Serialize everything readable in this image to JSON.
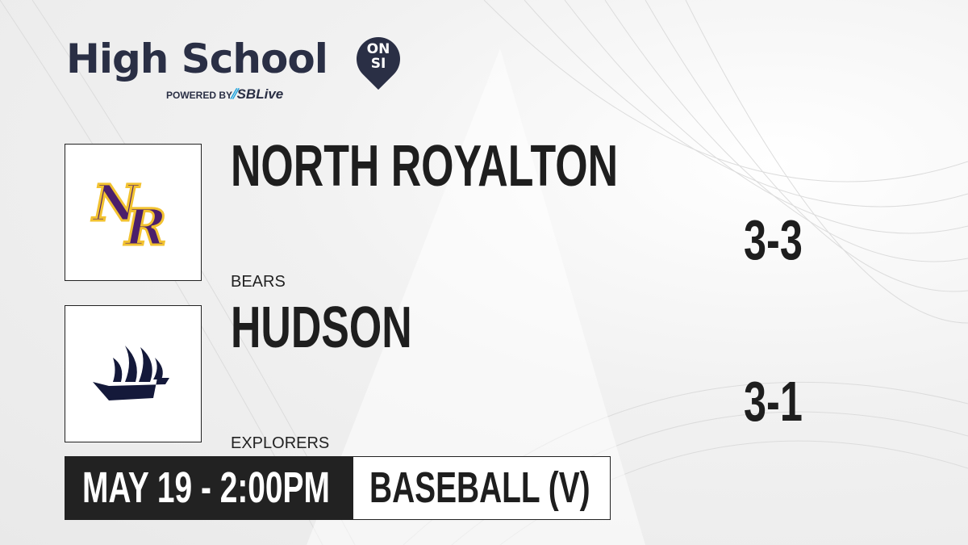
{
  "brand": {
    "title": "High School",
    "badge_top": "ON",
    "badge_bottom": "SI",
    "powered_by": "POWERED BY",
    "partner": "SBLive"
  },
  "teams": [
    {
      "name": "NORTH ROYALTON",
      "mascot": "BEARS",
      "record": "3-3",
      "logo": "NR",
      "logo_colors": [
        "#4b1f6b",
        "#f2c230"
      ]
    },
    {
      "name": "HUDSON",
      "mascot": "EXPLORERS",
      "record": "3-1",
      "logo": "ship-icon",
      "logo_colors": [
        "#14193a"
      ]
    }
  ],
  "game": {
    "datetime": "MAY 19 - 2:00PM",
    "sport": "BASEBALL (V)"
  }
}
